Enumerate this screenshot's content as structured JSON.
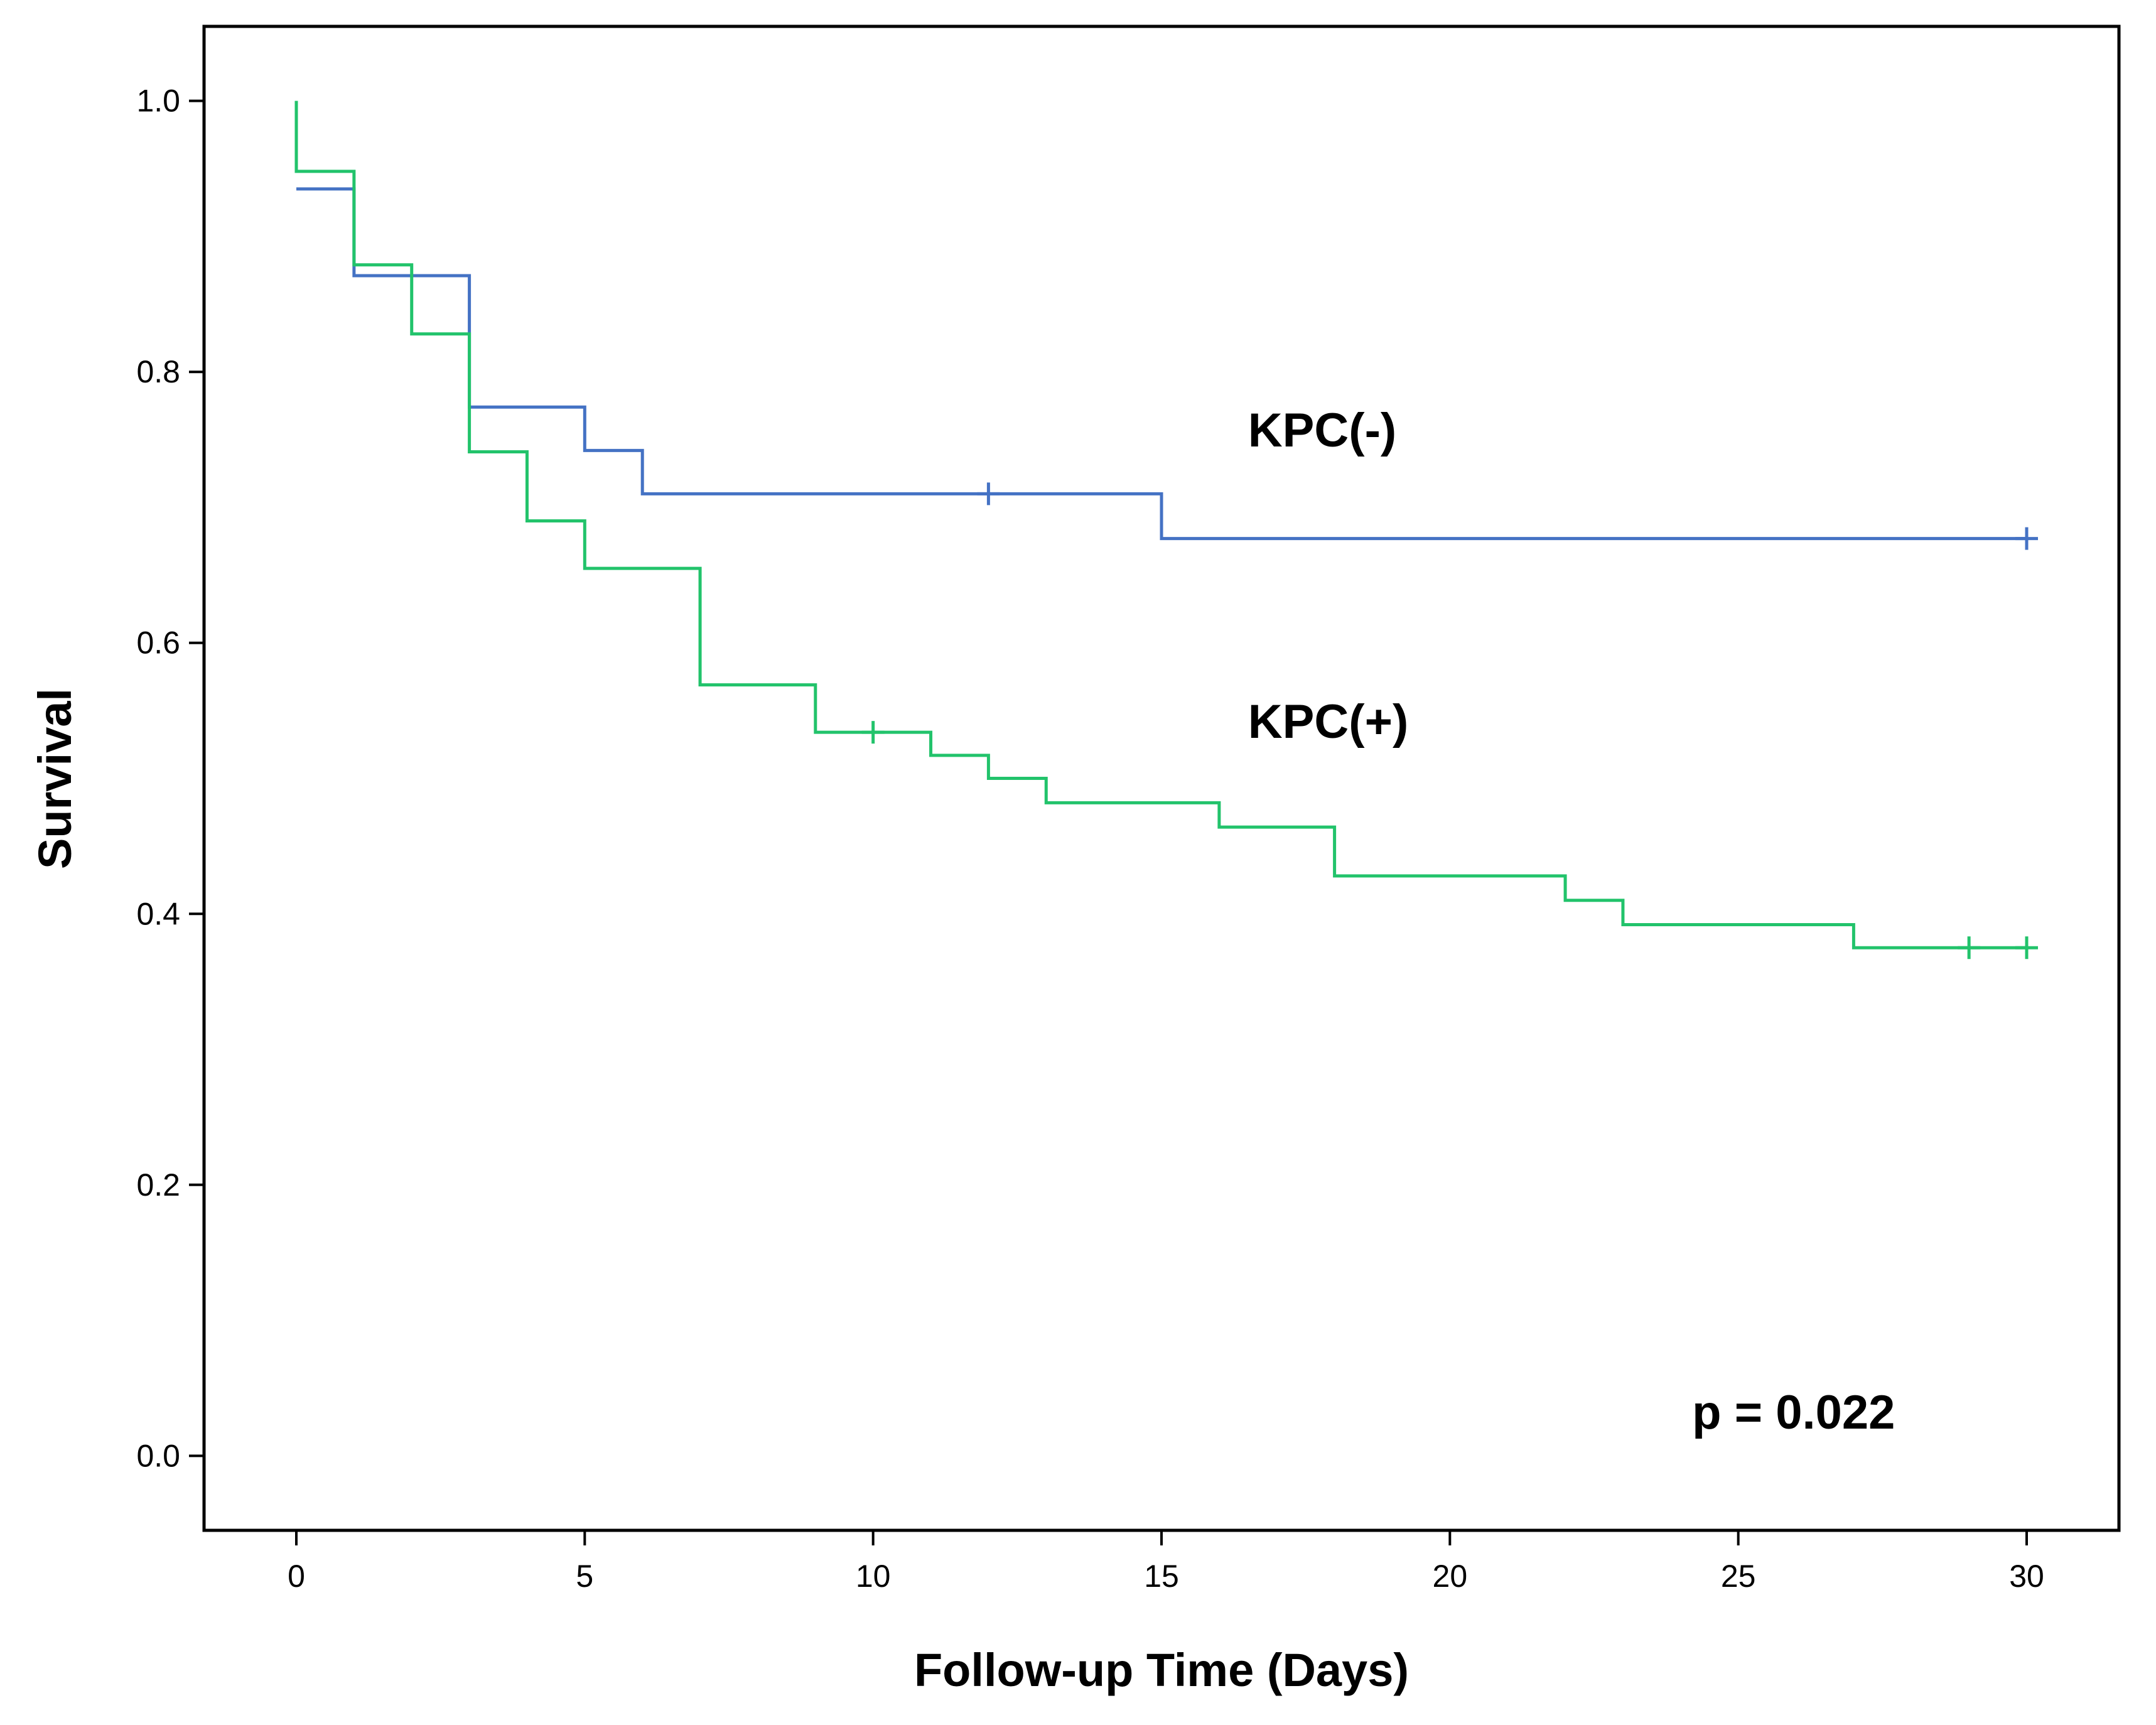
{
  "chart_data": {
    "type": "line",
    "subtype": "kaplan-meier-step",
    "title": "",
    "xlabel": "Follow-up Time (Days)",
    "ylabel": "Survival",
    "xlim": [
      -1.6,
      31.6
    ],
    "ylim": [
      -0.055,
      1.055
    ],
    "x_ticks": [
      0,
      5,
      10,
      15,
      20,
      25,
      30
    ],
    "y_ticks": [
      0.0,
      0.2,
      0.4,
      0.6,
      0.8,
      1.0
    ],
    "x_tick_labels": [
      "0",
      "5",
      "10",
      "15",
      "20",
      "25",
      "30"
    ],
    "y_tick_labels": [
      "0.0",
      "0.2",
      "0.4",
      "0.6",
      "0.8",
      "1.0"
    ],
    "grid": false,
    "legend": "none",
    "series": [
      {
        "name": "KPC(-)",
        "color": "#4472C4",
        "steps": [
          [
            0,
            0.935
          ],
          [
            1,
            0.871
          ],
          [
            3,
            0.774
          ],
          [
            5,
            0.742
          ],
          [
            6,
            0.71
          ],
          [
            15,
            0.677
          ],
          [
            30,
            0.677
          ]
        ],
        "censored": [
          [
            12,
            0.71
          ],
          [
            30,
            0.677
          ]
        ]
      },
      {
        "name": "KPC(+)",
        "color": "#22C36B",
        "steps": [
          [
            0,
            1.0
          ],
          [
            0,
            0.948
          ],
          [
            1,
            0.879
          ],
          [
            2,
            0.828
          ],
          [
            3,
            0.741
          ],
          [
            4,
            0.69
          ],
          [
            5,
            0.655
          ],
          [
            7,
            0.569
          ],
          [
            9,
            0.534
          ],
          [
            11,
            0.517
          ],
          [
            12,
            0.5
          ],
          [
            13,
            0.482
          ],
          [
            16,
            0.464
          ],
          [
            18,
            0.428
          ],
          [
            22,
            0.41
          ],
          [
            23,
            0.392
          ],
          [
            27,
            0.375
          ],
          [
            30,
            0.375
          ]
        ],
        "censored": [
          [
            10,
            0.534
          ],
          [
            29,
            0.375
          ],
          [
            30,
            0.375
          ]
        ]
      }
    ],
    "annotations": [
      {
        "text": "KPC(-)",
        "x": 16.5,
        "y": 0.745
      },
      {
        "text": "KPC(+)",
        "x": 16.5,
        "y": 0.53
      },
      {
        "text": "p = 0.022",
        "x": 24.2,
        "y": 0.02
      }
    ]
  }
}
